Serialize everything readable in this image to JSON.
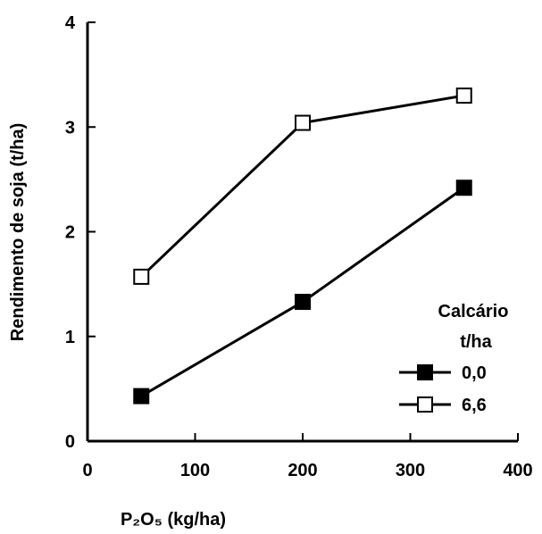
{
  "chart_data": {
    "type": "line",
    "x_label": "P₂O₅ (kg/ha)",
    "y_label": "Rendimento de soja (t/ha)",
    "legend_title": [
      "Calcário",
      "t/ha"
    ],
    "legend_position": "lower right",
    "x": [
      50,
      200,
      350
    ],
    "series": [
      {
        "name": "0,0",
        "color": "#000000",
        "marker": "filled-square",
        "values": [
          0.43,
          1.33,
          2.42
        ]
      },
      {
        "name": "6,6",
        "color": "#000000",
        "marker": "open-square",
        "values": [
          1.57,
          3.04,
          3.3
        ]
      }
    ],
    "xlim": [
      0,
      400
    ],
    "xticks": [
      0,
      100,
      200,
      300,
      400
    ],
    "ylim": [
      0,
      4
    ],
    "yticks": [
      0,
      1,
      2,
      3,
      4
    ],
    "grid": false
  }
}
